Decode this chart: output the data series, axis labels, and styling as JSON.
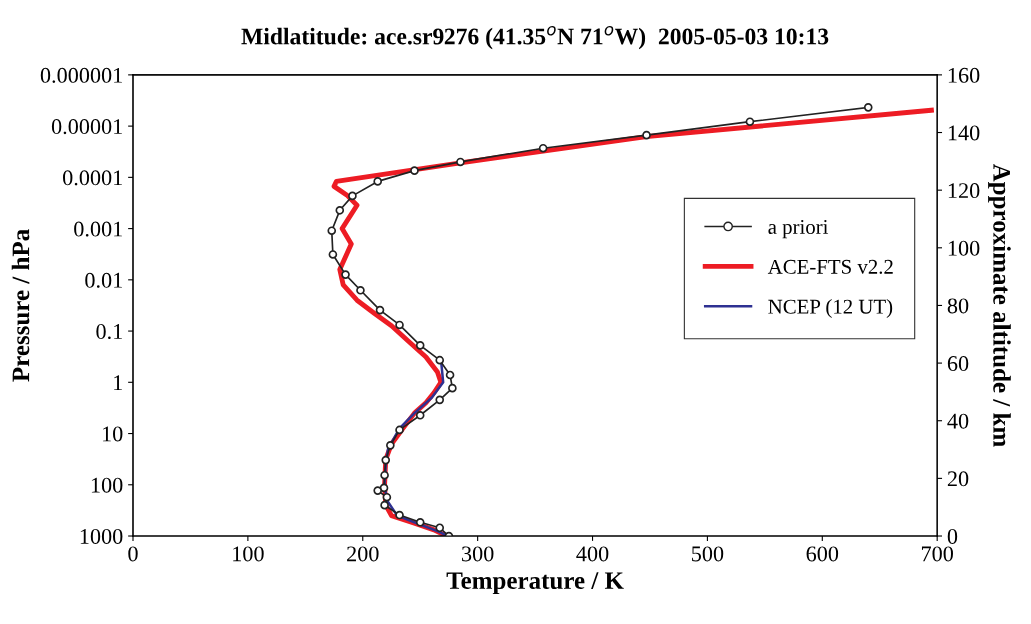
{
  "chart_data": {
    "type": "line",
    "title": "Midlatitude: ace.sr9276 (41.35$^{o}$N 71$^{o}$W)  2005-05-03 10:13",
    "xlabel": "Temperature / K",
    "ylabel": "Pressure / hPa",
    "y2label": "Approximate altitude / km",
    "series": [
      {
        "name": "a priori",
        "color": "#222222",
        "marker": "circle",
        "x": [
          640,
          537,
          447,
          357,
          285,
          245,
          213,
          191,
          180,
          173,
          174,
          185,
          198,
          215,
          232,
          250,
          267,
          276,
          278,
          267,
          250,
          232,
          224,
          220,
          219,
          218.5,
          213,
          221,
          219,
          232,
          250,
          267,
          275
        ],
        "values": [
          4.3e-06,
          8.2e-06,
          1.5e-05,
          2.7e-05,
          5e-05,
          7.4e-05,
          0.00012,
          0.00023,
          0.00044,
          0.0011,
          0.0032,
          0.0079,
          0.016,
          0.039,
          0.076,
          0.19,
          0.37,
          0.72,
          1.3,
          2.2,
          4.4,
          8.5,
          17,
          33,
          65,
          115,
          130,
          175,
          250,
          390,
          540,
          690,
          1000
        ]
      },
      {
        "name": "ACE-FTS v2.2",
        "color": "#ed1c24",
        "marker": "none",
        "x": [
          695,
          447,
          285,
          177,
          175,
          186,
          195,
          182,
          190,
          180,
          183,
          195,
          210,
          225,
          240,
          255,
          265,
          268,
          262,
          255,
          245,
          235,
          225,
          220,
          219,
          220,
          225,
          245,
          262,
          273
        ],
        "values": [
          4.9e-06,
          1.6e-05,
          5.2e-05,
          0.00012,
          0.00015,
          0.00022,
          0.00035,
          0.001,
          0.002,
          0.0063,
          0.0126,
          0.025,
          0.045,
          0.079,
          0.16,
          0.32,
          0.63,
          1,
          1.6,
          2.5,
          4,
          7.9,
          16,
          32,
          100,
          250,
          400,
          560,
          760,
          1000
        ]
      },
      {
        "name": "NCEP (12 UT)",
        "color": "#2e3192",
        "marker": "none",
        "x": [
          268,
          270,
          260,
          245,
          232,
          222,
          220,
          219,
          221,
          230,
          250,
          265,
          274
        ],
        "values": [
          0.35,
          1,
          2,
          4,
          7.9,
          20,
          40,
          100,
          200,
          400,
          600,
          800,
          1000
        ]
      }
    ],
    "log": "y",
    "xlim": [
      0,
      700
    ],
    "xticks": [
      0,
      100,
      200,
      300,
      400,
      500,
      600,
      700
    ],
    "ylim": [
      1000,
      1e-06
    ],
    "yticks": [
      {
        "value": 1e-06,
        "label": "0.000001"
      },
      {
        "value": 1e-05,
        "label": "0.00001"
      },
      {
        "value": 0.0001,
        "label": "0.0001"
      },
      {
        "value": 0.001,
        "label": "0.001"
      },
      {
        "value": 0.01,
        "label": "0.01"
      },
      {
        "value": 0.1,
        "label": "0.1"
      },
      1,
      10,
      100,
      1000
    ],
    "y2lim": [
      0,
      160
    ],
    "y2ticks": [
      0,
      20,
      40,
      60,
      80,
      100,
      120,
      140,
      160
    ],
    "grid": false,
    "legend": "right",
    "line_style": "solid"
  }
}
